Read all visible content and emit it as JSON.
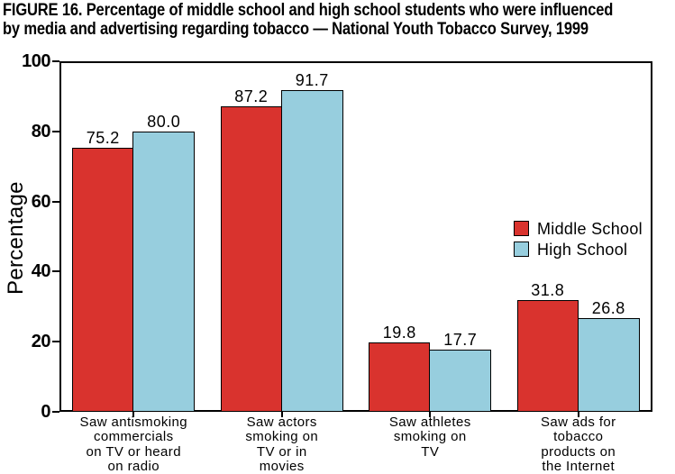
{
  "figure": {
    "title_line1": "FIGURE 16. Percentage of middle school and high school students who were influenced",
    "title_line2": "by media and advertising regarding tobacco — National Youth Tobacco Survey, 1999"
  },
  "chart_data": {
    "type": "bar",
    "title": "FIGURE 16. Percentage of middle school and high school students who were influenced by media and advertising regarding tobacco — National Youth Tobacco Survey, 1999",
    "xlabel": "",
    "ylabel": "Percentage",
    "ylim": [
      0,
      100
    ],
    "yticks": [
      0,
      20,
      40,
      60,
      80,
      100
    ],
    "grid": false,
    "legend_position": "inside-right",
    "bar_value_labels_shown": true,
    "categories": [
      "Saw antismoking commercials on TV or heard on radio",
      "Saw actors smoking on TV or in movies",
      "Saw athletes smoking on TV",
      "Saw ads for tobacco products on the Internet"
    ],
    "category_label_lines": [
      [
        "Saw antismoking",
        "commercials",
        "on TV or heard",
        "on radio"
      ],
      [
        "Saw actors",
        "smoking on",
        "TV or in",
        "movies"
      ],
      [
        "Saw athletes",
        "smoking on",
        "TV"
      ],
      [
        "Saw ads for",
        "tobacco",
        "products on",
        "the Internet"
      ]
    ],
    "series": [
      {
        "name": "Middle School",
        "color": "#d9332e",
        "values": [
          75.2,
          87.2,
          19.8,
          31.8
        ],
        "labels": [
          "75.2",
          "87.2",
          "19.8",
          "31.8"
        ]
      },
      {
        "name": "High School",
        "color": "#97cede",
        "values": [
          80.0,
          91.7,
          17.7,
          26.8
        ],
        "labels": [
          "80.0",
          "91.7",
          "17.7",
          "26.8"
        ]
      }
    ]
  },
  "colors": {
    "background": "#ffffff",
    "axis": "#000000",
    "text": "#000000",
    "middle_school": "#d9332e",
    "high_school": "#97cede"
  }
}
